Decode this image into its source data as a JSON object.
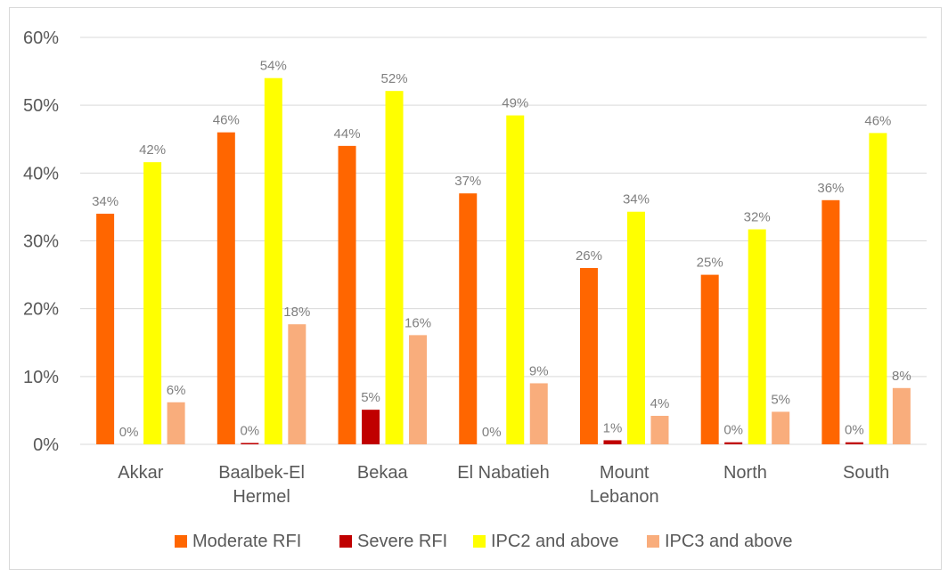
{
  "chart_data": {
    "type": "bar",
    "categories": [
      [
        "Akkar"
      ],
      [
        "Baalbek-El",
        "Hermel"
      ],
      [
        "Bekaa"
      ],
      [
        "El Nabatieh"
      ],
      [
        "Mount",
        "Lebanon"
      ],
      [
        "North"
      ],
      [
        "South"
      ]
    ],
    "series": [
      {
        "name": "Moderate RFI",
        "color": "#ff6600",
        "values": [
          34,
          46,
          44,
          37,
          26,
          25,
          36
        ],
        "labels": [
          "34%",
          "46%",
          "44%",
          "37%",
          "26%",
          "25%",
          "36%"
        ]
      },
      {
        "name": "Severe RFI",
        "color": "#c00000",
        "values": [
          0,
          0.2,
          5.1,
          0,
          0.6,
          0.3,
          0.3
        ],
        "labels": [
          "0%",
          "0%",
          "5%",
          "0%",
          "1%",
          "0%",
          "0%"
        ]
      },
      {
        "name": "IPC2 and above",
        "color": "#ffff00",
        "values": [
          41.6,
          54,
          52.1,
          48.5,
          34.3,
          31.7,
          45.9
        ],
        "labels": [
          "42%",
          "54%",
          "52%",
          "49%",
          "34%",
          "32%",
          "46%"
        ]
      },
      {
        "name": "IPC3 and above",
        "color": "#f9ad7c",
        "values": [
          6.2,
          17.7,
          16.1,
          9,
          4.2,
          4.8,
          8.3
        ],
        "labels": [
          "6%",
          "18%",
          "16%",
          "9%",
          "4%",
          "5%",
          "8%"
        ]
      }
    ],
    "yticks": [
      "0%",
      "10%",
      "20%",
      "30%",
      "40%",
      "50%",
      "60%"
    ],
    "ylim": [
      0,
      60
    ],
    "title": "",
    "xlabel": "",
    "ylabel": "",
    "grid": true,
    "legend": "bottom"
  }
}
